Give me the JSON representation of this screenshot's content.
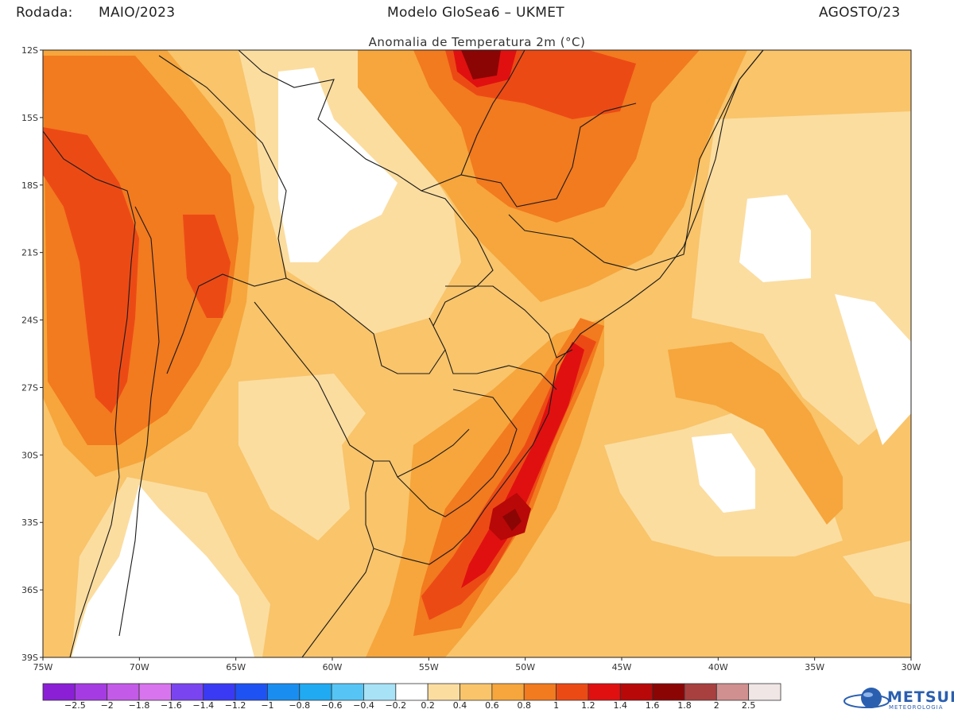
{
  "header": {
    "run_label": "Rodada:",
    "run_value": "MAIO/2023",
    "model": "Modelo GloSea6 – UKMET",
    "target": "AGOSTO/23",
    "subtitle": "Anomalia de Temperatura 2m (°C)"
  },
  "axes": {
    "lat_ticks": [
      "12S",
      "15S",
      "18S",
      "21S",
      "24S",
      "27S",
      "30S",
      "33S",
      "36S",
      "39S"
    ],
    "lon_ticks": [
      "75W",
      "70W",
      "65W",
      "60W",
      "55W",
      "50W",
      "45W",
      "40W",
      "35W",
      "30W"
    ]
  },
  "colorbar": {
    "labels": [
      "−2.5",
      "−2",
      "−1.8",
      "−1.6",
      "−1.4",
      "−1.2",
      "−1",
      "−0.8",
      "−0.6",
      "−0.4",
      "−0.2",
      "0.2",
      "0.4",
      "0.6",
      "0.8",
      "1",
      "1.2",
      "1.4",
      "1.6",
      "1.8",
      "2",
      "2.5"
    ],
    "colors": [
      "#8a1fd6",
      "#a53ce3",
      "#c35ae8",
      "#d875ee",
      "#7a45f0",
      "#3a3af5",
      "#1f52f2",
      "#1a8ef0",
      "#20aaf2",
      "#56c5f5",
      "#a8e2f7",
      "#ffffff",
      "#fbdda0",
      "#f9c46a",
      "#f6a63c",
      "#f27a1f",
      "#ec4a15",
      "#e01010",
      "#b80808",
      "#8c0505",
      "#a84040",
      "#d09090",
      "#f1e6e6"
    ]
  },
  "logo": {
    "name": "METSUL",
    "tagline": "METEOROLOGIA"
  }
}
